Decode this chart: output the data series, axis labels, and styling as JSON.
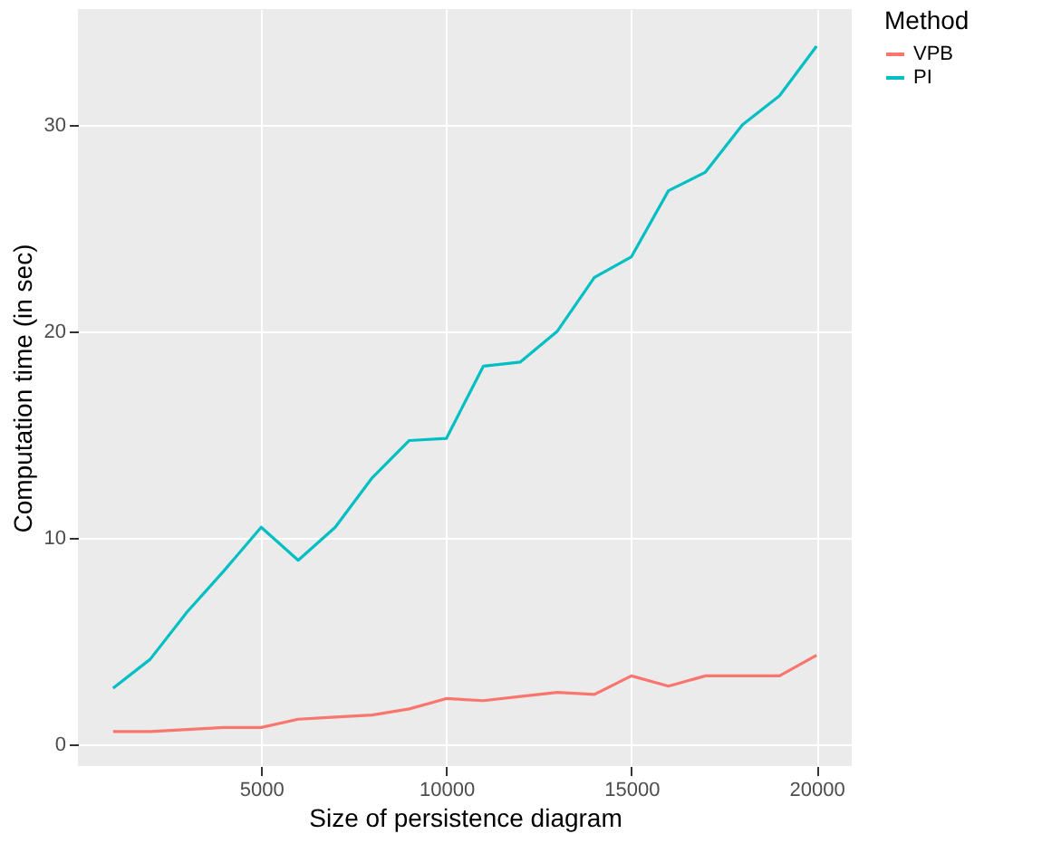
{
  "chart_data": {
    "type": "line",
    "xlabel": "Size of persistence diagram",
    "ylabel": "Computation time (in sec)",
    "legend_title": "Method",
    "legend": "right",
    "grid": true,
    "x": [
      1000,
      2000,
      3000,
      4000,
      5000,
      6000,
      7000,
      8000,
      9000,
      10000,
      11000,
      12000,
      13000,
      14000,
      15000,
      16000,
      17000,
      18000,
      19000,
      20000
    ],
    "series": [
      {
        "name": "VPB",
        "color": "#f8766d",
        "values": [
          0.6,
          0.6,
          0.7,
          0.8,
          0.8,
          1.2,
          1.3,
          1.4,
          1.7,
          2.2,
          2.1,
          2.3,
          2.5,
          2.4,
          3.3,
          2.8,
          3.3,
          3.3,
          3.3,
          4.3
        ]
      },
      {
        "name": "PI",
        "color": "#00bfc4",
        "values": [
          2.7,
          4.1,
          6.4,
          8.4,
          10.5,
          8.9,
          10.5,
          12.9,
          14.7,
          14.8,
          18.3,
          18.5,
          20.0,
          22.6,
          23.6,
          26.8,
          27.7,
          30.0,
          31.4,
          33.8
        ]
      }
    ],
    "xlim": [
      50,
      20950
    ],
    "ylim": [
      -1.07,
      35.6
    ],
    "xticks": [
      5000,
      10000,
      15000,
      20000
    ],
    "yticks": [
      0,
      10,
      20,
      30
    ]
  }
}
